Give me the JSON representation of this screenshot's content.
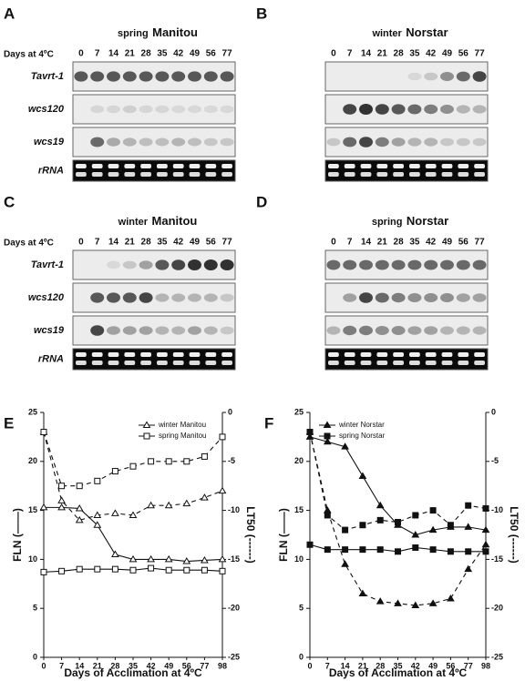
{
  "blots": {
    "header": "Days at 4ºC",
    "lanes": [
      "0",
      "7",
      "14",
      "21",
      "28",
      "35",
      "42",
      "49",
      "56",
      "77"
    ],
    "rows": [
      "Tavrt-1",
      "wcs120",
      "wcs19",
      "rRNA"
    ],
    "panels": [
      {
        "letter": "A",
        "season": "spring",
        "cultivar": "Manitou"
      },
      {
        "letter": "B",
        "season": "winter",
        "cultivar": "Norstar"
      },
      {
        "letter": "C",
        "season": "winter",
        "cultivar": "Manitou"
      },
      {
        "letter": "D",
        "season": "spring",
        "cultivar": "Norstar"
      }
    ]
  },
  "chart_data": [
    {
      "type": "line",
      "panel": "E",
      "x_label": "Days of Acclimation at 4ºC",
      "y_label": "FLN  (——)",
      "y2_label": "LT50  (------)",
      "categories": [
        0,
        7,
        14,
        21,
        28,
        35,
        42,
        49,
        56,
        77,
        98
      ],
      "ylim": [
        0,
        25
      ],
      "yticks": [
        0,
        5,
        10,
        15,
        20,
        25
      ],
      "y2lim": [
        -25,
        0
      ],
      "y2ticks": [
        -25,
        -20,
        -15,
        -10,
        -5,
        0
      ],
      "legend": "upper right",
      "marker_fill": "open",
      "color": "#111111",
      "series": [
        {
          "name": "winter Manitou",
          "marker": "triangle",
          "values": [
            15.3,
            15.3,
            15.2,
            13.5,
            10.5,
            10,
            10,
            10,
            9.8,
            9.9,
            10
          ],
          "y2_values": [
            -2,
            -9,
            -11,
            -10.5,
            -10.3,
            -10.5,
            -9.5,
            -9.5,
            -9.3,
            -8.7,
            -8
          ]
        },
        {
          "name": "spring Manitou",
          "marker": "square",
          "values": [
            8.7,
            8.8,
            9,
            9,
            9,
            8.9,
            9.1,
            8.9,
            8.9,
            8.9,
            8.8
          ],
          "y2_values": [
            -2,
            -7.5,
            -7.5,
            -7,
            -6,
            -5.5,
            -5,
            -5,
            -5,
            -4.5,
            -2.5
          ]
        }
      ]
    },
    {
      "type": "line",
      "panel": "F",
      "x_label": "Days of Acclimation at 4ºC",
      "y_label": "FLN  (——)",
      "y2_label": "LT50  (------)",
      "categories": [
        0,
        7,
        14,
        21,
        28,
        35,
        42,
        49,
        56,
        77,
        98
      ],
      "ylim": [
        0,
        25
      ],
      "yticks": [
        0,
        5,
        10,
        15,
        20,
        25
      ],
      "y2lim": [
        -25,
        0
      ],
      "y2ticks": [
        -25,
        -20,
        -15,
        -10,
        -5,
        0
      ],
      "legend": "upper left",
      "marker_fill": "filled",
      "color": "#111111",
      "series": [
        {
          "name": "winter Norstar",
          "marker": "triangle",
          "values": [
            22.5,
            22,
            21.5,
            18.5,
            15.5,
            13.5,
            12.5,
            13,
            13.3,
            13.3,
            13
          ],
          "y2_values": [
            -2,
            -10,
            -15.5,
            -18.5,
            -19.3,
            -19.5,
            -19.7,
            -19.5,
            -19,
            -16,
            -13.5
          ]
        },
        {
          "name": "spring Norstar",
          "marker": "square",
          "values": [
            11.5,
            11,
            11,
            11,
            11,
            10.8,
            11.2,
            11,
            10.8,
            10.8,
            10.8
          ],
          "y2_values": [
            -2,
            -10.5,
            -12,
            -11.5,
            -11,
            -11.2,
            -10.5,
            -10,
            -11.5,
            -9.5,
            -9.8
          ]
        }
      ]
    }
  ]
}
